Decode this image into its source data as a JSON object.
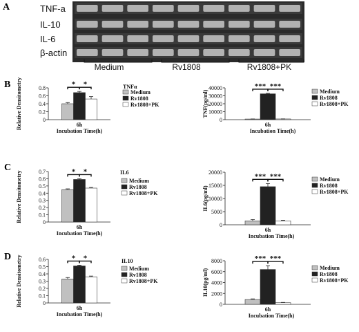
{
  "panel_letters": [
    "A",
    "B",
    "C",
    "D"
  ],
  "gel": {
    "lanes": [
      "TNF-a",
      "IL-10",
      "IL-6",
      "β-actin"
    ],
    "groups": [
      "Medium",
      "Rv1808",
      "Rv1808+PK"
    ]
  },
  "colors": {
    "medium": "#c0c0c0",
    "rv1808": "#222222",
    "pk": "#ffffff",
    "edge": "#333333"
  },
  "chart_data": [
    {
      "id": "B-left",
      "type": "bar",
      "title": "TNFα",
      "ylabel": "Relative Densitometry",
      "xlabel": "Incubation Time(h)",
      "categories": [
        "6h"
      ],
      "ylim": [
        0,
        0.8
      ],
      "yticks": [
        "0",
        "0.2",
        "0.4",
        "0.6",
        "0.8"
      ],
      "grid": false,
      "series": [
        {
          "name": "Medium",
          "values": [
            0.4
          ],
          "err": [
            0.03
          ]
        },
        {
          "name": "Rv1808",
          "values": [
            0.68
          ],
          "err": [
            0.03
          ]
        },
        {
          "name": "Rv1808+PK",
          "values": [
            0.52
          ],
          "err": [
            0.06
          ]
        }
      ],
      "annotations": [
        "*",
        "*"
      ],
      "legend": "right"
    },
    {
      "id": "B-right",
      "type": "bar",
      "title": "",
      "ylabel": "TNF(pg/ml)",
      "xlabel": "Incubation Time(h)",
      "categories": [
        "6h"
      ],
      "ylim": [
        0,
        40000
      ],
      "yticks": [
        "0",
        "10000",
        "20000",
        "30000",
        "40000"
      ],
      "grid": false,
      "series": [
        {
          "name": "Medium",
          "values": [
            800
          ],
          "err": [
            100
          ]
        },
        {
          "name": "Rv1808",
          "values": [
            32500
          ],
          "err": [
            600
          ]
        },
        {
          "name": "Rv1808+PK",
          "values": [
            900
          ],
          "err": [
            100
          ]
        }
      ],
      "annotations": [
        "***",
        "***"
      ],
      "legend": "right"
    },
    {
      "id": "C-left",
      "type": "bar",
      "title": "IL6",
      "ylabel": "Relative Densitometry",
      "xlabel": "Incubation Time(h)",
      "categories": [
        "6h"
      ],
      "ylim": [
        0,
        0.7
      ],
      "yticks": [
        "0",
        "0.1",
        "0.2",
        "0.3",
        "0.4",
        "0.5",
        "0.6",
        "0.7"
      ],
      "grid": false,
      "series": [
        {
          "name": "Medium",
          "values": [
            0.45
          ],
          "err": [
            0.01
          ]
        },
        {
          "name": "Rv1808",
          "values": [
            0.59
          ],
          "err": [
            0.01
          ]
        },
        {
          "name": "Rv1808+PK",
          "values": [
            0.47
          ],
          "err": [
            0.01
          ]
        }
      ],
      "annotations": [
        "*",
        "*"
      ],
      "legend": "right"
    },
    {
      "id": "C-right",
      "type": "bar",
      "title": "",
      "ylabel": "IL6(pg/ml)",
      "xlabel": "Incubation Time(h)",
      "categories": [
        "6h"
      ],
      "ylim": [
        0,
        20000
      ],
      "yticks": [
        "0",
        "5000",
        "10000",
        "15000",
        "20000"
      ],
      "grid": false,
      "series": [
        {
          "name": "Medium",
          "values": [
            1500
          ],
          "err": [
            500
          ]
        },
        {
          "name": "Rv1808",
          "values": [
            14500
          ],
          "err": [
            1200
          ]
        },
        {
          "name": "Rv1808+PK",
          "values": [
            1500
          ],
          "err": [
            200
          ]
        }
      ],
      "annotations": [
        "***",
        "***"
      ],
      "legend": "right"
    },
    {
      "id": "D-left",
      "type": "bar",
      "title": "IL10",
      "ylabel": "Relative Densitometry",
      "xlabel": "Incubation Time(h)",
      "categories": [
        "6h"
      ],
      "ylim": [
        0,
        0.6
      ],
      "yticks": [
        "0",
        "0.1",
        "0.2",
        "0.3",
        "0.4",
        "0.5",
        "0.6"
      ],
      "grid": false,
      "series": [
        {
          "name": "Medium",
          "values": [
            0.33
          ],
          "err": [
            0.02
          ]
        },
        {
          "name": "Rv1808",
          "values": [
            0.51
          ],
          "err": [
            0.01
          ]
        },
        {
          "name": "Rv1808+PK",
          "values": [
            0.36
          ],
          "err": [
            0.01
          ]
        }
      ],
      "annotations": [
        "*",
        "*"
      ],
      "legend": "right"
    },
    {
      "id": "D-right",
      "type": "bar",
      "title": "",
      "ylabel": "IL10(pg/ml)",
      "xlabel": "Incubation Time(h)",
      "categories": [
        "6h"
      ],
      "ylim": [
        0,
        8000
      ],
      "yticks": [
        "0",
        "2000",
        "4000",
        "6000",
        "8000"
      ],
      "grid": false,
      "series": [
        {
          "name": "Medium",
          "values": [
            900
          ],
          "err": [
            100
          ]
        },
        {
          "name": "Rv1808",
          "values": [
            6400
          ],
          "err": [
            700
          ]
        },
        {
          "name": "Rv1808+PK",
          "values": [
            300
          ],
          "err": [
            50
          ]
        }
      ],
      "annotations": [
        "***",
        "***"
      ],
      "legend": "right"
    }
  ]
}
